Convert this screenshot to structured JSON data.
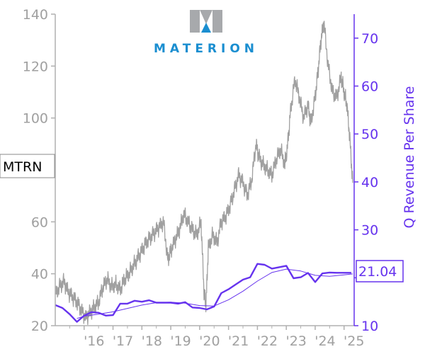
{
  "ticker": "MTRN",
  "logo_text": "MATERION",
  "colors": {
    "price": "#a0a0a0",
    "revenue": "#6633ee",
    "revenue_trend": "#6633ee",
    "left_axis": "#b0b0b0",
    "tick_text_left": "#a0a0a0",
    "right_axis": "#6633ee",
    "logo": "#1a8ed0",
    "logo_mark": "#a7a9ac"
  },
  "chart_data": {
    "type": "line",
    "xlabel": "",
    "x_tick_labels": [
      "'16",
      "'17",
      "'18",
      "'19",
      "'20",
      "'21",
      "'22",
      "'23",
      "'24",
      "'25"
    ],
    "xlim": [
      2015.0,
      2025.35
    ],
    "y_left": {
      "label": "",
      "ticks": [
        20,
        40,
        60,
        80,
        100,
        120,
        140
      ],
      "tick_labels": [
        "20",
        "40",
        "60",
        "",
        "100",
        "120",
        "140"
      ],
      "lim": [
        20,
        140
      ]
    },
    "y_right": {
      "label": "Q Revenue Per Share",
      "ticks": [
        10,
        20,
        30,
        40,
        50,
        60,
        70
      ],
      "tick_labels": [
        "10",
        "",
        "30",
        "40",
        "50",
        "60",
        "70"
      ],
      "lim": [
        10,
        75
      ]
    },
    "last_value_label": "21.04",
    "series": [
      {
        "axis": "left",
        "style": "price",
        "x": [
          2015.0,
          2015.15,
          2015.3,
          2015.45,
          2015.6,
          2015.75,
          2015.9,
          2016.05,
          2016.2,
          2016.35,
          2016.5,
          2016.65,
          2016.8,
          2016.95,
          2017.1,
          2017.25,
          2017.4,
          2017.55,
          2017.7,
          2017.85,
          2018.0,
          2018.15,
          2018.3,
          2018.45,
          2018.6,
          2018.75,
          2018.9,
          2019.0,
          2019.15,
          2019.3,
          2019.45,
          2019.6,
          2019.75,
          2019.9,
          2020.05,
          2020.15,
          2020.22,
          2020.3,
          2020.45,
          2020.6,
          2020.75,
          2020.9,
          2021.05,
          2021.2,
          2021.35,
          2021.5,
          2021.65,
          2021.8,
          2021.95,
          2022.05,
          2022.2,
          2022.35,
          2022.5,
          2022.65,
          2022.8,
          2022.95,
          2023.05,
          2023.15,
          2023.3,
          2023.45,
          2023.6,
          2023.75,
          2023.85,
          2024.0,
          2024.1,
          2024.2,
          2024.3,
          2024.45,
          2024.6,
          2024.75,
          2024.9,
          2025.0,
          2025.1,
          2025.2,
          2025.3
        ],
        "y": [
          32,
          35,
          37,
          33,
          31,
          29,
          26,
          23,
          25,
          27,
          29,
          35,
          38,
          35,
          36,
          34,
          38,
          40,
          43,
          46,
          49,
          52,
          54,
          56,
          58,
          60,
          45,
          49,
          53,
          57,
          63,
          60,
          57,
          55,
          60,
          33,
          28,
          50,
          55,
          52,
          60,
          62,
          66,
          72,
          78,
          75,
          70,
          76,
          90,
          85,
          82,
          80,
          78,
          84,
          88,
          82,
          90,
          103,
          115,
          108,
          100,
          105,
          98,
          108,
          118,
          130,
          137,
          120,
          110,
          108,
          116,
          110,
          105,
          92,
          75
        ]
      },
      {
        "axis": "right",
        "style": "revenue",
        "x": [
          2015.0,
          2015.25,
          2015.5,
          2015.75,
          2016.0,
          2016.25,
          2016.5,
          2016.75,
          2017.0,
          2017.25,
          2017.5,
          2017.75,
          2018.0,
          2018.25,
          2018.5,
          2018.75,
          2019.0,
          2019.25,
          2019.5,
          2019.75,
          2020.0,
          2020.25,
          2020.5,
          2020.75,
          2021.0,
          2021.25,
          2021.5,
          2021.75,
          2022.0,
          2022.25,
          2022.5,
          2022.75,
          2023.0,
          2023.25,
          2023.5,
          2023.75,
          2024.0,
          2024.25,
          2024.5,
          2024.75,
          2025.0,
          2025.25
        ],
        "y": [
          14.3,
          13.7,
          12.4,
          10.8,
          12.1,
          12.8,
          12.7,
          12.1,
          12.2,
          14.6,
          14.6,
          15.2,
          15.0,
          15.3,
          14.8,
          14.8,
          14.8,
          14.6,
          14.9,
          13.8,
          13.7,
          13.4,
          14.0,
          16.8,
          17.6,
          18.6,
          19.6,
          20.1,
          22.9,
          22.7,
          21.9,
          22.2,
          22.5,
          19.9,
          20.1,
          21.0,
          19.1,
          20.9,
          21.1,
          21.04,
          21.04,
          21.04
        ]
      },
      {
        "axis": "right",
        "style": "revenue_trend",
        "x": [
          2015.75,
          2016.0,
          2016.5,
          2017.0,
          2017.5,
          2018.0,
          2018.5,
          2019.0,
          2019.5,
          2020.0,
          2020.5,
          2021.0,
          2021.5,
          2022.0,
          2022.5,
          2023.0,
          2023.5,
          2024.0,
          2024.5,
          2025.0,
          2025.3
        ],
        "y": [
          11.5,
          12.0,
          12.4,
          12.9,
          13.6,
          14.3,
          14.8,
          14.9,
          14.7,
          14.2,
          14.1,
          15.4,
          17.2,
          19.3,
          21.1,
          21.8,
          21.4,
          20.5,
          20.3,
          20.6,
          20.8
        ]
      }
    ]
  }
}
